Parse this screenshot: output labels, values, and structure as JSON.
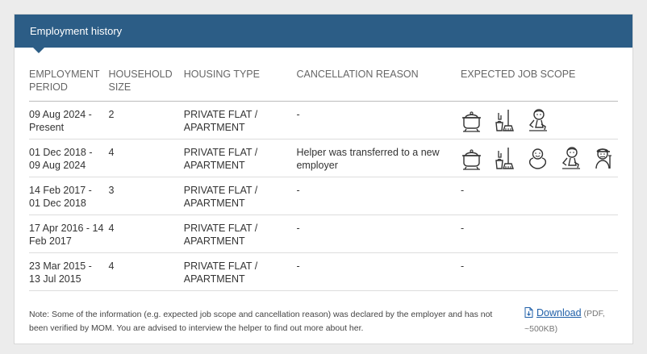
{
  "header": {
    "title": "Employment history"
  },
  "table": {
    "columns": [
      "EMPLOYMENT PERIOD",
      "HOUSEHOLD SIZE",
      "HOUSING TYPE",
      "CANCELLATION REASON",
      "EXPECTED JOB SCOPE"
    ],
    "rows": [
      {
        "period": "09 Aug 2024 - Present",
        "household_size": "2",
        "housing_type": "PRIVATE FLAT / APARTMENT",
        "cancellation_reason": "-",
        "job_scope": [
          "cooking-icon",
          "cleaning-icon",
          "child-care-icon"
        ],
        "job_scope_text": ""
      },
      {
        "period": "01 Dec 2018 - 09 Aug 2024",
        "household_size": "4",
        "housing_type": "PRIVATE FLAT / APARTMENT",
        "cancellation_reason": "Helper was transferred to a new employer",
        "job_scope": [
          "cooking-icon",
          "cleaning-icon",
          "infant-care-icon",
          "child-care-icon",
          "elderly-care-icon"
        ],
        "job_scope_text": ""
      },
      {
        "period": "14 Feb 2017 - 01 Dec 2018",
        "household_size": "3",
        "housing_type": "PRIVATE FLAT / APARTMENT",
        "cancellation_reason": "-",
        "job_scope": [],
        "job_scope_text": "-"
      },
      {
        "period": "17 Apr 2016 - 14 Feb 2017",
        "household_size": "4",
        "housing_type": "PRIVATE FLAT / APARTMENT",
        "cancellation_reason": "-",
        "job_scope": [],
        "job_scope_text": "-"
      },
      {
        "period": "23 Mar 2015 - 13 Jul 2015",
        "household_size": "4",
        "housing_type": "PRIVATE FLAT / APARTMENT",
        "cancellation_reason": "-",
        "job_scope": [],
        "job_scope_text": "-"
      }
    ]
  },
  "note": "Note: Some of the information (e.g. expected job scope and cancellation reason) was declared by the employer and has not been verified by MOM. You are advised to interview the helper to find out more about her.",
  "download": {
    "label": "Download",
    "meta": "(PDF, ~500KB)",
    "icon": "pdf-file-icon"
  },
  "colors": {
    "header": "#2c5d86",
    "link": "#1f5fa8"
  }
}
